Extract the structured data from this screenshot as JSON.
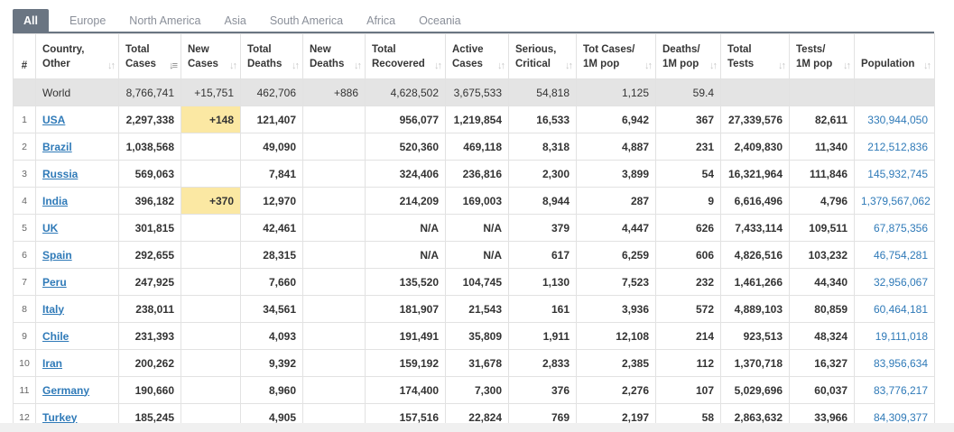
{
  "tabs": [
    "All",
    "Europe",
    "North America",
    "Asia",
    "South America",
    "Africa",
    "Oceania"
  ],
  "columns": [
    {
      "l1": "#",
      "l2": ""
    },
    {
      "l1": "Country,",
      "l2": "Other"
    },
    {
      "l1": "Total",
      "l2": "Cases"
    },
    {
      "l1": "New",
      "l2": "Cases"
    },
    {
      "l1": "Total",
      "l2": "Deaths"
    },
    {
      "l1": "New",
      "l2": "Deaths"
    },
    {
      "l1": "Total",
      "l2": "Recovered"
    },
    {
      "l1": "Active",
      "l2": "Cases"
    },
    {
      "l1": "Serious,",
      "l2": "Critical"
    },
    {
      "l1": "Tot Cases/",
      "l2": "1M pop"
    },
    {
      "l1": "Deaths/",
      "l2": "1M pop"
    },
    {
      "l1": "Total",
      "l2": "Tests"
    },
    {
      "l1": "Tests/",
      "l2": "1M pop"
    },
    {
      "l1": "",
      "l2": "Population"
    }
  ],
  "world": {
    "country": "World",
    "total_cases": "8,766,741",
    "new_cases": "+15,751",
    "total_deaths": "462,706",
    "new_deaths": "+886",
    "total_recovered": "4,628,502",
    "active_cases": "3,675,533",
    "serious": "54,818",
    "cases_per_m": "1,125",
    "deaths_per_m": "59.4",
    "total_tests": "",
    "tests_per_m": "",
    "population": ""
  },
  "rows": [
    {
      "idx": "1",
      "country": "USA",
      "total_cases": "2,297,338",
      "new_cases": "+148",
      "total_deaths": "121,407",
      "new_deaths": "",
      "total_recovered": "956,077",
      "active_cases": "1,219,854",
      "serious": "16,533",
      "cases_per_m": "6,942",
      "deaths_per_m": "367",
      "total_tests": "27,339,576",
      "tests_per_m": "82,611",
      "population": "330,944,050"
    },
    {
      "idx": "2",
      "country": "Brazil",
      "total_cases": "1,038,568",
      "new_cases": "",
      "total_deaths": "49,090",
      "new_deaths": "",
      "total_recovered": "520,360",
      "active_cases": "469,118",
      "serious": "8,318",
      "cases_per_m": "4,887",
      "deaths_per_m": "231",
      "total_tests": "2,409,830",
      "tests_per_m": "11,340",
      "population": "212,512,836"
    },
    {
      "idx": "3",
      "country": "Russia",
      "total_cases": "569,063",
      "new_cases": "",
      "total_deaths": "7,841",
      "new_deaths": "",
      "total_recovered": "324,406",
      "active_cases": "236,816",
      "serious": "2,300",
      "cases_per_m": "3,899",
      "deaths_per_m": "54",
      "total_tests": "16,321,964",
      "tests_per_m": "111,846",
      "population": "145,932,745"
    },
    {
      "idx": "4",
      "country": "India",
      "total_cases": "396,182",
      "new_cases": "+370",
      "total_deaths": "12,970",
      "new_deaths": "",
      "total_recovered": "214,209",
      "active_cases": "169,003",
      "serious": "8,944",
      "cases_per_m": "287",
      "deaths_per_m": "9",
      "total_tests": "6,616,496",
      "tests_per_m": "4,796",
      "population": "1,379,567,062"
    },
    {
      "idx": "5",
      "country": "UK",
      "total_cases": "301,815",
      "new_cases": "",
      "total_deaths": "42,461",
      "new_deaths": "",
      "total_recovered": "N/A",
      "active_cases": "N/A",
      "serious": "379",
      "cases_per_m": "4,447",
      "deaths_per_m": "626",
      "total_tests": "7,433,114",
      "tests_per_m": "109,511",
      "population": "67,875,356"
    },
    {
      "idx": "6",
      "country": "Spain",
      "total_cases": "292,655",
      "new_cases": "",
      "total_deaths": "28,315",
      "new_deaths": "",
      "total_recovered": "N/A",
      "active_cases": "N/A",
      "serious": "617",
      "cases_per_m": "6,259",
      "deaths_per_m": "606",
      "total_tests": "4,826,516",
      "tests_per_m": "103,232",
      "population": "46,754,281"
    },
    {
      "idx": "7",
      "country": "Peru",
      "total_cases": "247,925",
      "new_cases": "",
      "total_deaths": "7,660",
      "new_deaths": "",
      "total_recovered": "135,520",
      "active_cases": "104,745",
      "serious": "1,130",
      "cases_per_m": "7,523",
      "deaths_per_m": "232",
      "total_tests": "1,461,266",
      "tests_per_m": "44,340",
      "population": "32,956,067"
    },
    {
      "idx": "8",
      "country": "Italy",
      "total_cases": "238,011",
      "new_cases": "",
      "total_deaths": "34,561",
      "new_deaths": "",
      "total_recovered": "181,907",
      "active_cases": "21,543",
      "serious": "161",
      "cases_per_m": "3,936",
      "deaths_per_m": "572",
      "total_tests": "4,889,103",
      "tests_per_m": "80,859",
      "population": "60,464,181"
    },
    {
      "idx": "9",
      "country": "Chile",
      "total_cases": "231,393",
      "new_cases": "",
      "total_deaths": "4,093",
      "new_deaths": "",
      "total_recovered": "191,491",
      "active_cases": "35,809",
      "serious": "1,911",
      "cases_per_m": "12,108",
      "deaths_per_m": "214",
      "total_tests": "923,513",
      "tests_per_m": "48,324",
      "population": "19,111,018"
    },
    {
      "idx": "10",
      "country": "Iran",
      "total_cases": "200,262",
      "new_cases": "",
      "total_deaths": "9,392",
      "new_deaths": "",
      "total_recovered": "159,192",
      "active_cases": "31,678",
      "serious": "2,833",
      "cases_per_m": "2,385",
      "deaths_per_m": "112",
      "total_tests": "1,370,718",
      "tests_per_m": "16,327",
      "population": "83,956,634"
    },
    {
      "idx": "11",
      "country": "Germany",
      "total_cases": "190,660",
      "new_cases": "",
      "total_deaths": "8,960",
      "new_deaths": "",
      "total_recovered": "174,400",
      "active_cases": "7,300",
      "serious": "376",
      "cases_per_m": "2,276",
      "deaths_per_m": "107",
      "total_tests": "5,029,696",
      "tests_per_m": "60,037",
      "population": "83,776,217"
    },
    {
      "idx": "12",
      "country": "Turkey",
      "total_cases": "185,245",
      "new_cases": "",
      "total_deaths": "4,905",
      "new_deaths": "",
      "total_recovered": "157,516",
      "active_cases": "22,824",
      "serious": "769",
      "cases_per_m": "2,197",
      "deaths_per_m": "58",
      "total_tests": "2,863,632",
      "tests_per_m": "33,966",
      "population": "84,309,377"
    }
  ],
  "colors": {
    "highlight": "#fbe8a3",
    "link": "#2f7ab8",
    "world_row": "#e4e4e4",
    "tab_active": "#6a7582"
  }
}
